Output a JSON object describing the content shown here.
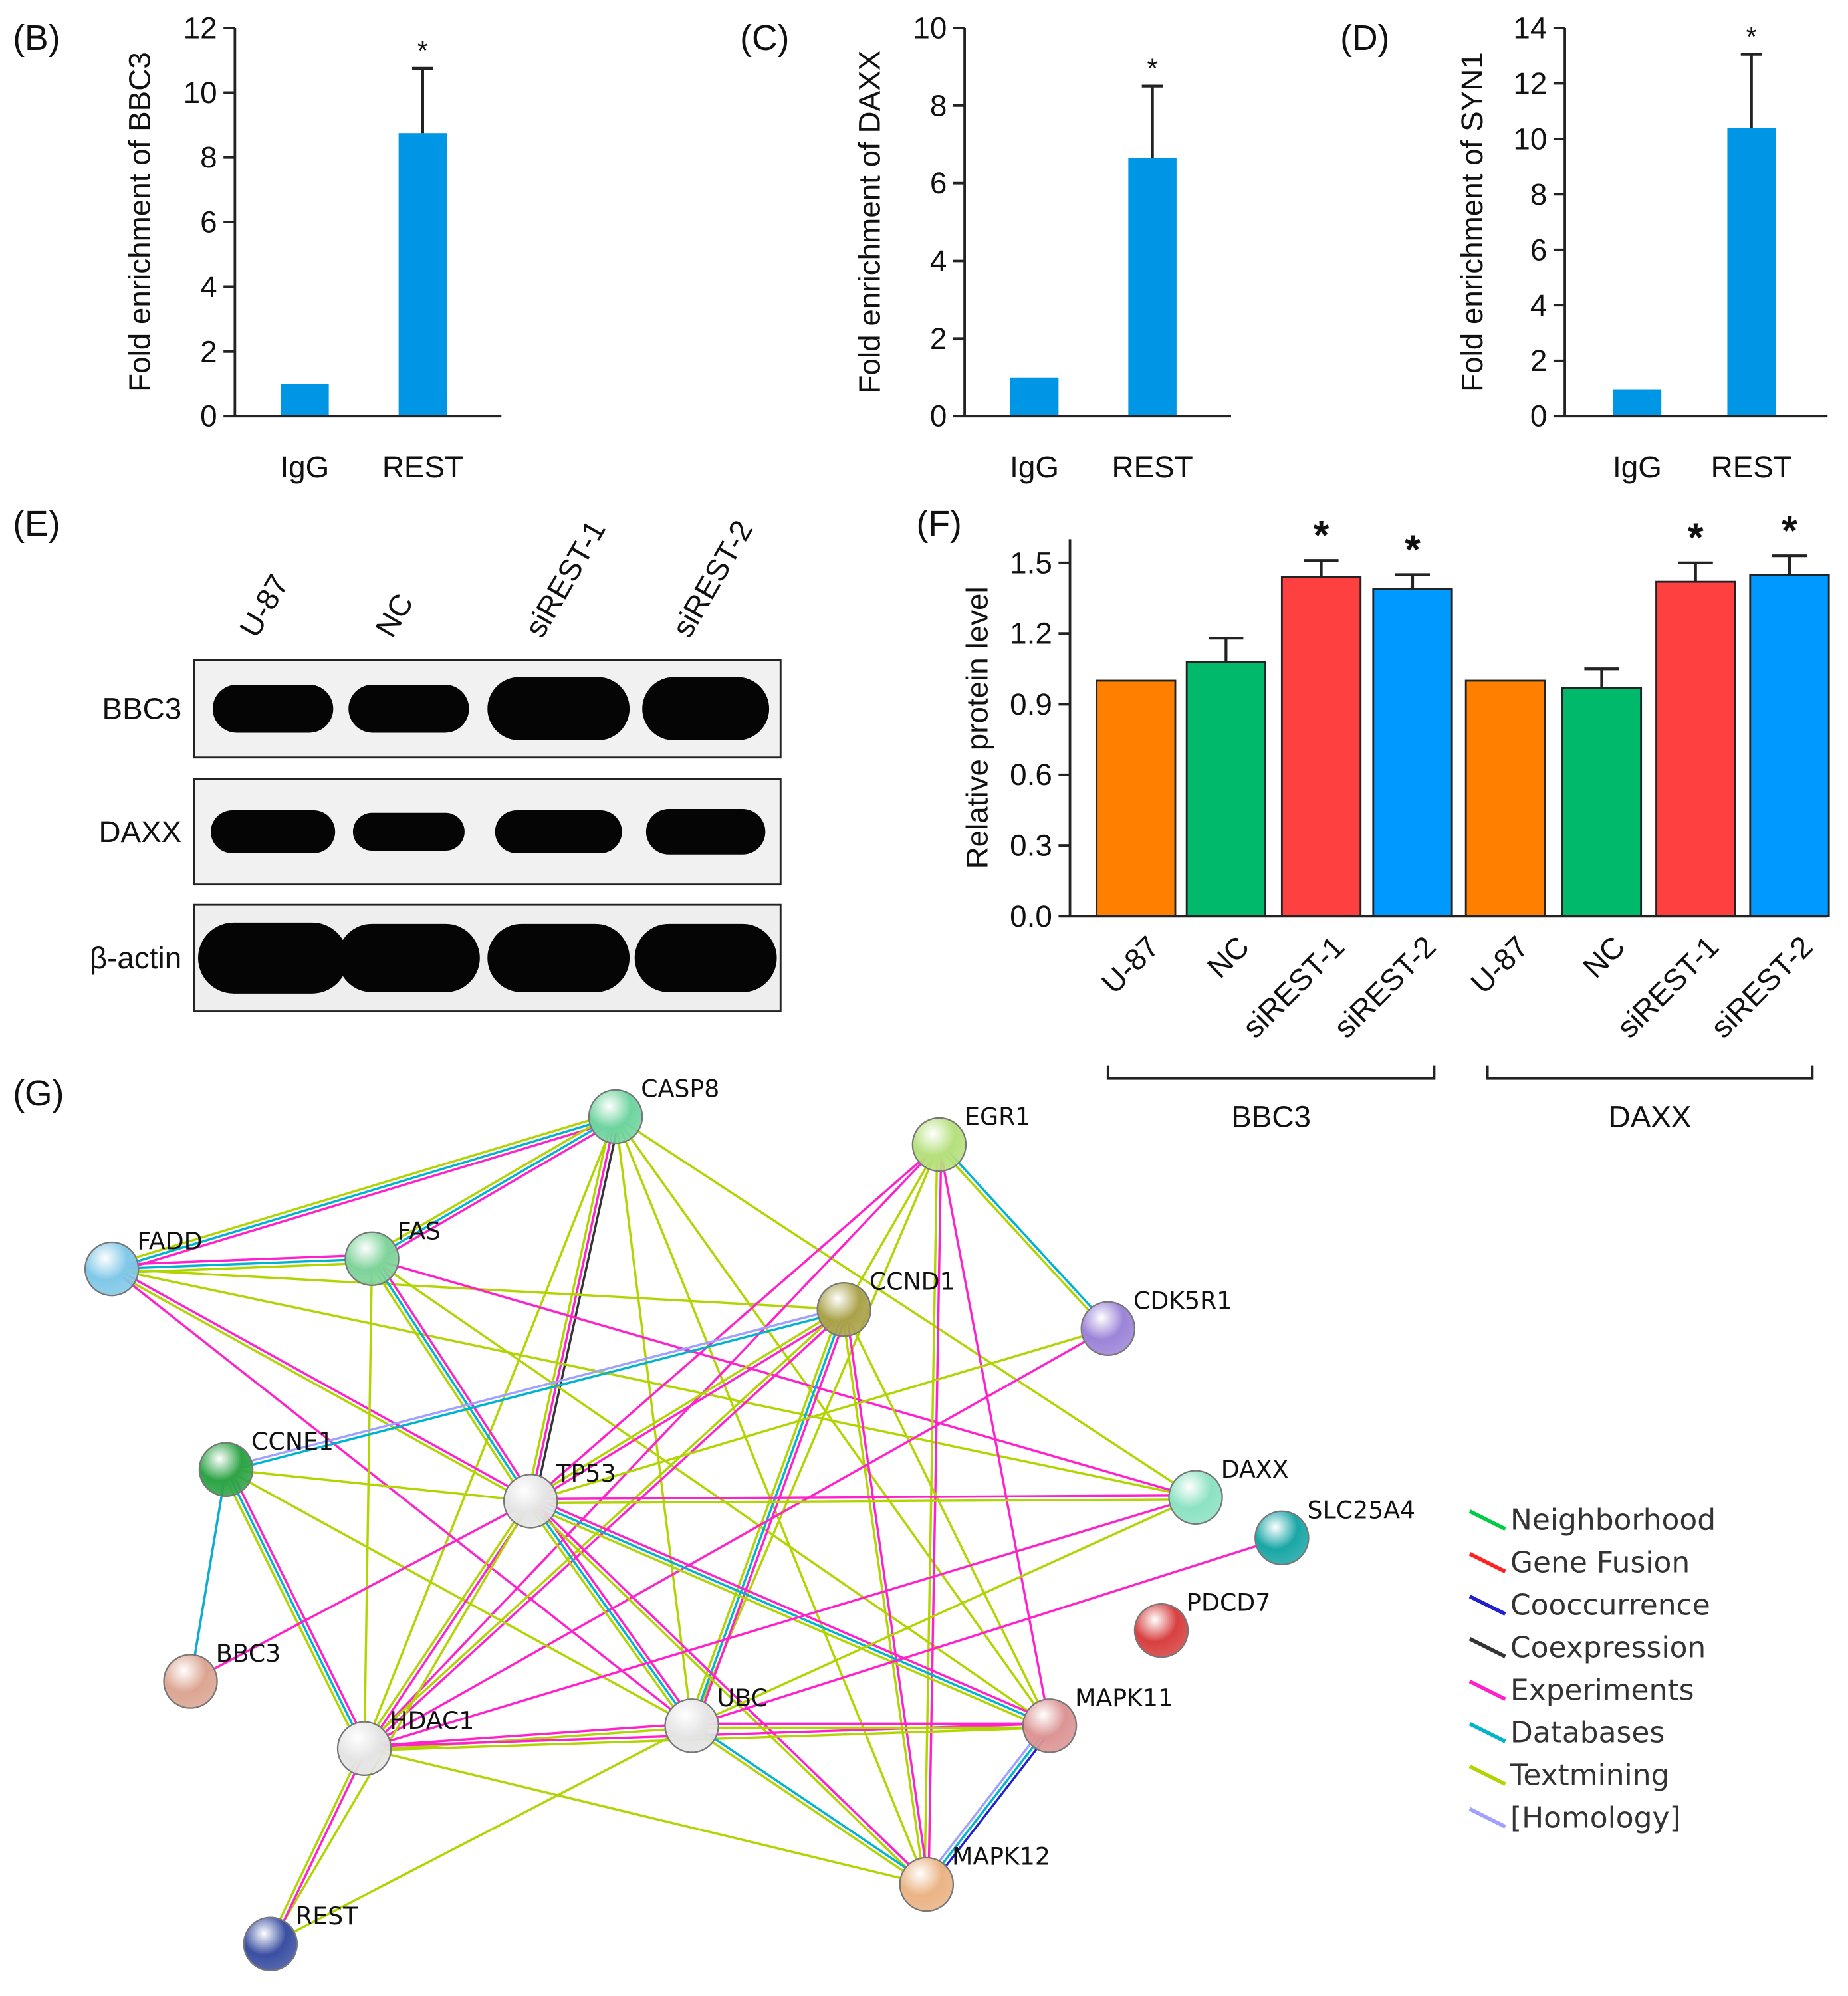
{
  "chart_data": [
    {
      "type": "bar",
      "panel": "(B)",
      "ylabel": "Fold enrichment of BBC3",
      "categories": [
        "IgG",
        "REST"
      ],
      "values": [
        1,
        8.75
      ],
      "errors": [
        null,
        2.0
      ],
      "annotations": [
        null,
        "*"
      ],
      "color": "#0096e6",
      "ylim": [
        0,
        12
      ],
      "yticks": [
        0,
        2,
        4,
        6,
        8,
        10,
        12
      ]
    },
    {
      "type": "bar",
      "panel": "(C)",
      "ylabel": "Fold enrichment of DAXX",
      "categories": [
        "IgG",
        "REST"
      ],
      "values": [
        1,
        6.65
      ],
      "errors": [
        null,
        1.85
      ],
      "annotations": [
        null,
        "*"
      ],
      "color": "#0096e6",
      "ylim": [
        0,
        10
      ],
      "yticks": [
        0,
        2,
        4,
        6,
        8,
        10
      ]
    },
    {
      "type": "bar",
      "panel": "(D)",
      "ylabel": "Fold enrichment of SYN1",
      "categories": [
        "IgG",
        "REST"
      ],
      "values": [
        0.95,
        10.4
      ],
      "errors": [
        null,
        2.65
      ],
      "annotations": [
        null,
        "*"
      ],
      "color": "#0096e6",
      "ylim": [
        0,
        14
      ],
      "yticks": [
        0,
        2,
        4,
        6,
        8,
        10,
        12,
        14
      ]
    },
    {
      "type": "bar",
      "panel": "(F)",
      "ylabel": "Relative protein level",
      "categories": [
        "U-87",
        "NC",
        "siREST-1",
        "siREST-2",
        "U-87",
        "NC",
        "siREST-1",
        "siREST-2"
      ],
      "values": [
        1,
        1.08,
        1.44,
        1.39,
        1,
        0.97,
        1.42,
        1.45
      ],
      "errors": [
        null,
        0.1,
        0.07,
        0.06,
        null,
        0.08,
        0.08,
        0.08
      ],
      "annotations": [
        null,
        null,
        "*",
        "*",
        null,
        null,
        "*",
        "*"
      ],
      "colors": [
        "#ff8000",
        "#00b96a",
        "#ff4040",
        "#0099ff",
        "#ff8000",
        "#00b96a",
        "#ff4040",
        "#0099ff"
      ],
      "groups": [
        "BBC3",
        "DAXX"
      ],
      "ylim": [
        0,
        1.6
      ],
      "yticks": [
        {
          "value": 0,
          "label": "0.0"
        },
        0.3,
        0.6,
        0.9,
        1.2,
        1.5
      ]
    }
  ],
  "blot": {
    "panel": "(E)",
    "lanes": [
      "U-87",
      "NC",
      "siREST-1",
      "siREST-2"
    ],
    "rows": [
      "BBC3",
      "DAXX",
      "β-actin"
    ]
  },
  "network": {
    "panel": "(G)",
    "nodes": [
      {
        "label": "CASP8",
        "color": "#6fd4a0"
      },
      {
        "label": "EGR1",
        "color": "#b5e07c"
      },
      {
        "label": "FADD",
        "color": "#80c8e8"
      },
      {
        "label": "FAS",
        "color": "#7ed39a"
      },
      {
        "label": "CCND1",
        "color": "#aaa24a"
      },
      {
        "label": "CDK5R1",
        "color": "#9c84d8"
      },
      {
        "label": "CCNE1",
        "color": "#2ea446"
      },
      {
        "label": "TP53",
        "color": "#e4e4e4"
      },
      {
        "label": "DAXX",
        "color": "#8ce2c2"
      },
      {
        "label": "SLC25A4",
        "color": "#1aa6a6"
      },
      {
        "label": "PDCD7",
        "color": "#d84040"
      },
      {
        "label": "BBC3",
        "color": "#dca592"
      },
      {
        "label": "HDAC1",
        "color": "#e4e4e4"
      },
      {
        "label": "UBC",
        "color": "#e4e4e4"
      },
      {
        "label": "MAPK11",
        "color": "#dc9494"
      },
      {
        "label": "MAPK12",
        "color": "#eab384"
      },
      {
        "label": "REST",
        "color": "#3a4fa2"
      }
    ],
    "legend": [
      {
        "name": "Neighborhood",
        "color": "#00cc44"
      },
      {
        "name": "Gene Fusion",
        "color": "#ff2020"
      },
      {
        "name": "Cooccurrence",
        "color": "#2020d0"
      },
      {
        "name": "Coexpression",
        "color": "#333333"
      },
      {
        "name": "Experiments",
        "color": "#ff22cc"
      },
      {
        "name": "Databases",
        "color": "#00b4d0"
      },
      {
        "name": "Textmining",
        "color": "#b2d400"
      },
      {
        "name": "[Homology]",
        "color": "#a0a0ff"
      }
    ]
  }
}
